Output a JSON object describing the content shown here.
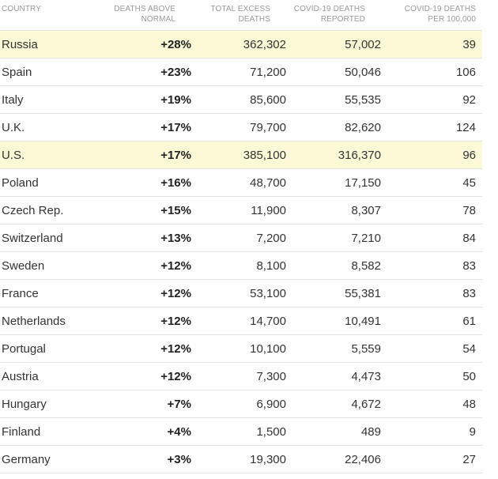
{
  "headers": {
    "country": "COUNTRY",
    "deaths_above_normal_1": "DEATHS ABOVE",
    "deaths_above_normal_2": "NORMAL",
    "total_excess_1": "TOTAL EXCESS",
    "total_excess_2": "DEATHS",
    "covid_reported_1": "COVID-19 DEATHS",
    "covid_reported_2": "REPORTED",
    "covid_per100k_1": "COVID-19 DEATHS",
    "covid_per100k_2": "PER 100,000"
  },
  "highlight_color": "#fcf9d6",
  "chart_data": {
    "type": "table",
    "columns": [
      "COUNTRY",
      "DEATHS ABOVE NORMAL",
      "TOTAL EXCESS DEATHS",
      "COVID-19 DEATHS REPORTED",
      "COVID-19 DEATHS PER 100,000"
    ],
    "rows": [
      {
        "country": "Russia",
        "pct": "+28%",
        "excess": "362,302",
        "covid": "57,002",
        "per100k": "39",
        "highlight": true
      },
      {
        "country": "Spain",
        "pct": "+23%",
        "excess": "71,200",
        "covid": "50,046",
        "per100k": "106",
        "highlight": false
      },
      {
        "country": "Italy",
        "pct": "+19%",
        "excess": "85,600",
        "covid": "55,535",
        "per100k": "92",
        "highlight": false
      },
      {
        "country": "U.K.",
        "pct": "+17%",
        "excess": "79,700",
        "covid": "82,620",
        "per100k": "124",
        "highlight": false
      },
      {
        "country": "U.S.",
        "pct": "+17%",
        "excess": "385,100",
        "covid": "316,370",
        "per100k": "96",
        "highlight": true
      },
      {
        "country": "Poland",
        "pct": "+16%",
        "excess": "48,700",
        "covid": "17,150",
        "per100k": "45",
        "highlight": false
      },
      {
        "country": "Czech Rep.",
        "pct": "+15%",
        "excess": "11,900",
        "covid": "8,307",
        "per100k": "78",
        "highlight": false
      },
      {
        "country": "Switzerland",
        "pct": "+13%",
        "excess": "7,200",
        "covid": "7,210",
        "per100k": "84",
        "highlight": false
      },
      {
        "country": "Sweden",
        "pct": "+12%",
        "excess": "8,100",
        "covid": "8,582",
        "per100k": "83",
        "highlight": false
      },
      {
        "country": "France",
        "pct": "+12%",
        "excess": "53,100",
        "covid": "55,381",
        "per100k": "83",
        "highlight": false
      },
      {
        "country": "Netherlands",
        "pct": "+12%",
        "excess": "14,700",
        "covid": "10,491",
        "per100k": "61",
        "highlight": false
      },
      {
        "country": "Portugal",
        "pct": "+12%",
        "excess": "10,100",
        "covid": "5,559",
        "per100k": "54",
        "highlight": false
      },
      {
        "country": "Austria",
        "pct": "+12%",
        "excess": "7,300",
        "covid": "4,473",
        "per100k": "50",
        "highlight": false
      },
      {
        "country": "Hungary",
        "pct": "+7%",
        "excess": "6,900",
        "covid": "4,672",
        "per100k": "48",
        "highlight": false
      },
      {
        "country": "Finland",
        "pct": "+4%",
        "excess": "1,500",
        "covid": "489",
        "per100k": "9",
        "highlight": false
      },
      {
        "country": "Germany",
        "pct": "+3%",
        "excess": "19,300",
        "covid": "22,406",
        "per100k": "27",
        "highlight": false
      }
    ]
  }
}
